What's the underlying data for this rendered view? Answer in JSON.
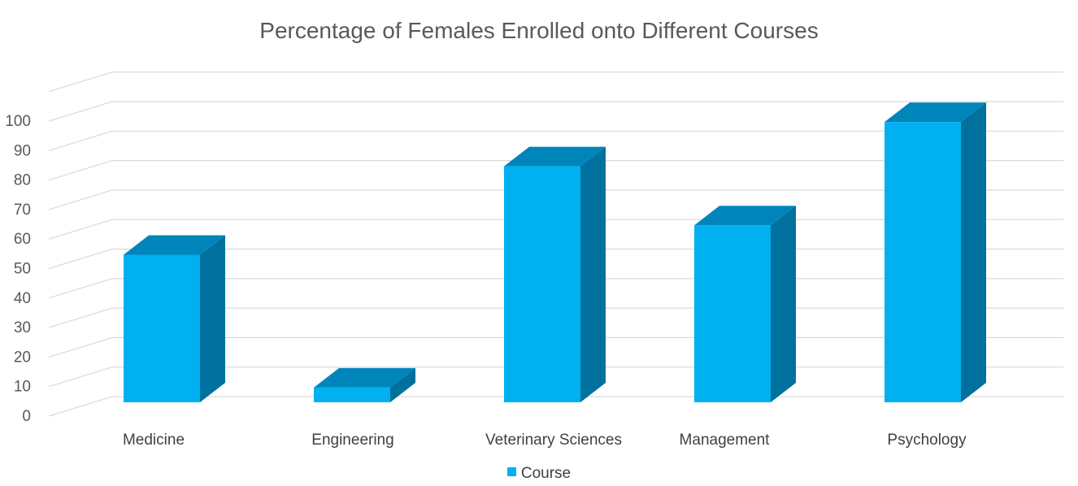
{
  "chart_data": {
    "type": "bar",
    "title": "Percentage of Females Enrolled onto Different Courses",
    "categories": [
      "Medicine",
      "Engineering",
      "Veterinary Sciences",
      "Management",
      "Psychology"
    ],
    "series": [
      {
        "name": "Course",
        "values": [
          50,
          5,
          80,
          60,
          95
        ]
      }
    ],
    "ylim": [
      0,
      100
    ],
    "yticks": [
      "0",
      "10",
      "20",
      "30",
      "40",
      "50",
      "60",
      "70",
      "80",
      "90",
      "100"
    ],
    "grid": true,
    "legend_position": "bottom",
    "three_d": true,
    "colors": {
      "front": "#00b0f0",
      "top": "#0085bb",
      "side": "#00719f"
    }
  }
}
